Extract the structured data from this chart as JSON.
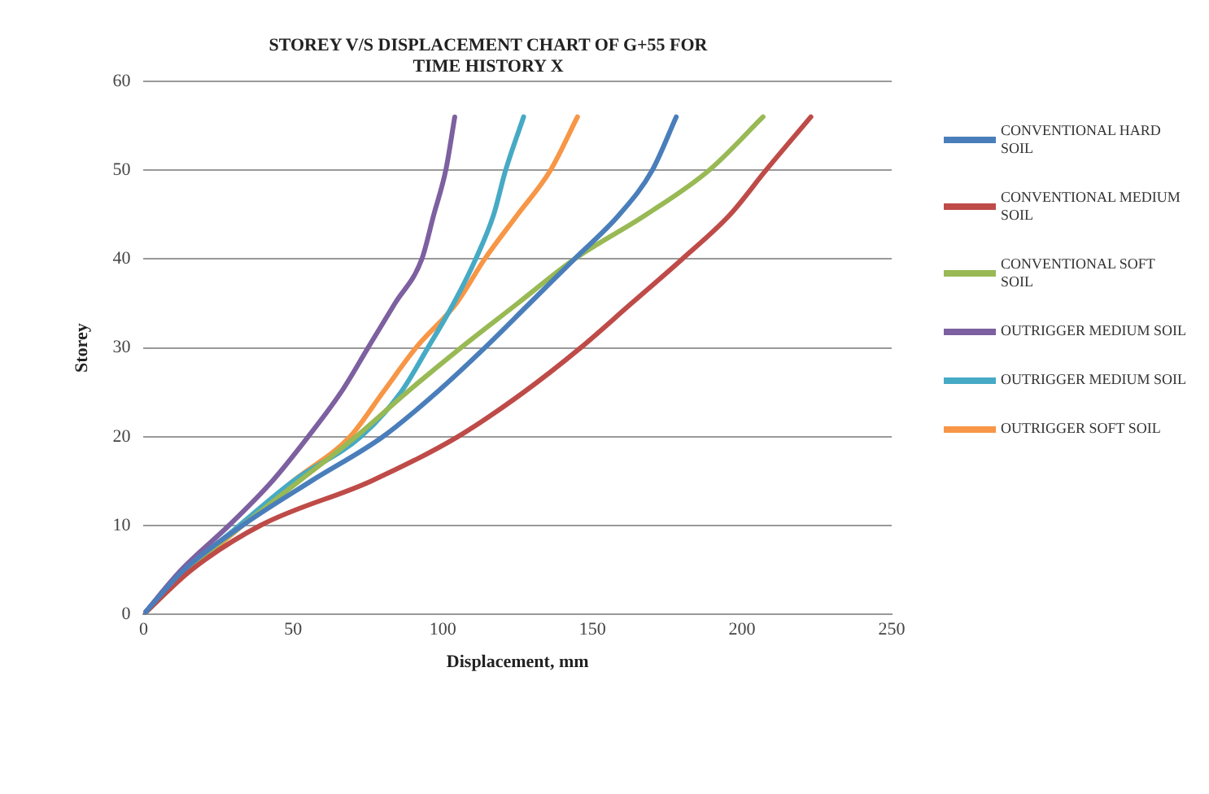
{
  "chart_data": {
    "type": "line",
    "title": "STOREY V/S DISPLACEMENT CHART OF G+55 FOR TIME HISTORY X",
    "xlabel": "Displacement, mm",
    "ylabel": "Storey",
    "xlim": [
      0,
      250
    ],
    "xticks": [
      0,
      50,
      100,
      150,
      200,
      250
    ],
    "ylim": [
      0,
      60
    ],
    "yticks": [
      0,
      10,
      20,
      30,
      40,
      50,
      60
    ],
    "grid": "y",
    "legend": "right",
    "marker": "none",
    "line_style": "solid",
    "series": [
      {
        "name": "CONVENTIONAL HARD SOIL",
        "color": "#4a7ebb",
        "x": [
          0,
          13.5,
          33,
          56,
          80,
          98,
          114,
          129,
          144,
          159,
          170,
          178
        ],
        "values": [
          0,
          5,
          10,
          15,
          20,
          25,
          30,
          35,
          40,
          45,
          50,
          56
        ]
      },
      {
        "name": "CONVENTIONAL MEDIUM SOIL",
        "color": "#be4b48",
        "x": [
          0,
          16,
          39,
          76,
          105,
          127,
          146,
          163,
          180,
          196,
          208,
          223
        ],
        "values": [
          0,
          5,
          10,
          15,
          20,
          25,
          30,
          35,
          40,
          45,
          50,
          56
        ]
      },
      {
        "name": "CONVENTIONAL SOFT SOIL",
        "color": "#98b954",
        "x": [
          0,
          14.5,
          33,
          52,
          71,
          88,
          106,
          125,
          144,
          168,
          189,
          207
        ],
        "values": [
          0,
          5,
          10,
          15,
          20,
          25,
          30,
          35,
          40,
          45,
          50,
          56
        ]
      },
      {
        "name": "OUTRIGGER MEDIUM SOIL",
        "color": "#7d60a0",
        "x": [
          0,
          12.6,
          28.5,
          43,
          55,
          66,
          75,
          84,
          93,
          97,
          101,
          104
        ],
        "values": [
          0,
          5,
          10,
          15,
          20,
          25,
          30,
          35,
          40,
          45,
          50,
          56
        ]
      },
      {
        "name": "OUTRIGGER MEDIUM SOIL",
        "color": "#46aac5",
        "x": [
          0,
          14.5,
          32,
          50,
          72.6,
          86,
          95,
          103.6,
          111,
          117,
          121,
          127
        ],
        "values": [
          0,
          5,
          10,
          15,
          20,
          25,
          30,
          35,
          40,
          45,
          50,
          56
        ]
      },
      {
        "name": "OUTRIGGER SOFT SOIL",
        "color": "#f79646",
        "x": [
          0,
          15.4,
          33,
          50,
          69,
          80,
          91,
          104.5,
          114,
          125,
          136,
          145
        ],
        "values": [
          0,
          5,
          10,
          15,
          20,
          25,
          30,
          35,
          40,
          45,
          50,
          56
        ]
      }
    ]
  }
}
